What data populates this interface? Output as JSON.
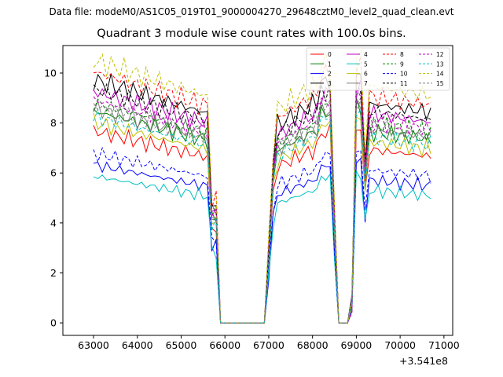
{
  "suptitle": "Data file: modeM0/AS1C05_019T01_9000004270_29648cztM0_level2_quad_clean.evt",
  "chart_data": {
    "type": "line",
    "title": "Quadrant 3 module wise count rates with 100.0s bins.",
    "xlabel": "",
    "ylabel": "",
    "x_offset_label": "+3.541e8",
    "xlim": [
      62300,
      71200
    ],
    "ylim": [
      -0.5,
      11.1
    ],
    "xticks": [
      63000,
      64000,
      65000,
      66000,
      67000,
      68000,
      69000,
      70000,
      71000
    ],
    "yticks": [
      0,
      2,
      4,
      6,
      8,
      10
    ],
    "legend_position": "top-right",
    "x": [
      63000,
      63100,
      63200,
      63300,
      63400,
      63500,
      63600,
      63700,
      63800,
      63900,
      64000,
      64100,
      64200,
      64300,
      64400,
      64500,
      64600,
      64700,
      64800,
      64900,
      65000,
      65100,
      65200,
      65300,
      65400,
      65500,
      65600,
      65700,
      65800,
      65900,
      66000,
      66100,
      66200,
      66300,
      66400,
      66500,
      66600,
      66700,
      66800,
      66900,
      67000,
      67100,
      67200,
      67300,
      67400,
      67500,
      67600,
      67700,
      67800,
      67900,
      68000,
      68100,
      68200,
      68300,
      68400,
      68500,
      68600,
      68700,
      68800,
      68900,
      69000,
      69100,
      69200,
      69300,
      69400,
      69500,
      69600,
      69700,
      69800,
      69900,
      70000,
      70100,
      70200,
      70300,
      70400,
      70500,
      70600,
      70700
    ],
    "series": [
      {
        "name": "0",
        "color": "#ff0000",
        "dash": "solid",
        "base": 6.8
      },
      {
        "name": "1",
        "color": "#008000",
        "dash": "solid",
        "base": 7.5
      },
      {
        "name": "2",
        "color": "#0000ff",
        "dash": "solid",
        "base": 5.6
      },
      {
        "name": "3",
        "color": "#000000",
        "dash": "solid",
        "base": 8.6
      },
      {
        "name": "4",
        "color": "#c000c0",
        "dash": "solid",
        "base": 8.2
      },
      {
        "name": "5",
        "color": "#00bfbf",
        "dash": "solid",
        "base": 5.2
      },
      {
        "name": "6",
        "color": "#bfbf00",
        "dash": "solid",
        "base": 7.1
      },
      {
        "name": "7",
        "color": "#808080",
        "dash": "solid",
        "base": 7.6
      },
      {
        "name": "8",
        "color": "#ff0000",
        "dash": "dashed",
        "base": 8.9
      },
      {
        "name": "9",
        "color": "#008000",
        "dash": "dashed",
        "base": 7.8
      },
      {
        "name": "10",
        "color": "#0000ff",
        "dash": "dashed",
        "base": 6.0
      },
      {
        "name": "11",
        "color": "#000000",
        "dash": "dashed",
        "base": 8.3
      },
      {
        "name": "12",
        "color": "#c000c0",
        "dash": "dashed",
        "base": 7.9
      },
      {
        "name": "13",
        "color": "#00bfbf",
        "dash": "dashed",
        "base": 7.3
      },
      {
        "name": "14",
        "color": "#bfbf00",
        "dash": "dashed",
        "base": 9.3
      },
      {
        "name": "15",
        "color": "#808080",
        "dash": "dashed",
        "base": 7.7
      }
    ]
  }
}
